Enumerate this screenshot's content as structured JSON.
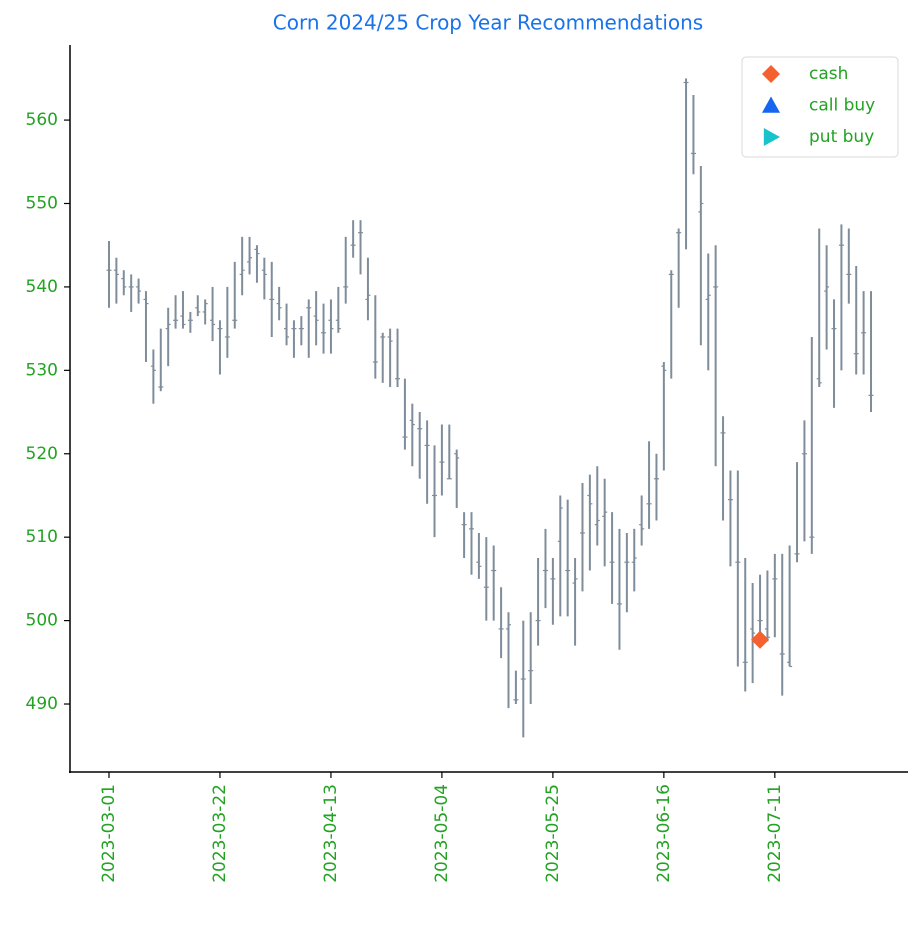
{
  "chart_data": {
    "type": "ohlc",
    "title": "Corn 2024/25 Crop Year Recommendations",
    "categories": [
      "2023-03-01",
      null,
      null,
      null,
      null,
      null,
      null,
      null,
      null,
      null,
      null,
      null,
      null,
      null,
      null,
      "2023-03-22",
      null,
      null,
      null,
      null,
      null,
      null,
      null,
      null,
      null,
      null,
      null,
      null,
      null,
      null,
      "2023-04-13",
      null,
      null,
      null,
      null,
      null,
      null,
      null,
      null,
      null,
      null,
      null,
      null,
      null,
      null,
      "2023-05-04",
      null,
      null,
      null,
      null,
      null,
      null,
      null,
      null,
      null,
      null,
      null,
      null,
      null,
      null,
      "2023-05-25",
      null,
      null,
      null,
      null,
      null,
      null,
      null,
      null,
      null,
      null,
      null,
      null,
      null,
      null,
      "2023-06-16",
      null,
      null,
      null,
      null,
      null,
      null,
      null,
      null,
      null,
      null,
      null,
      null,
      null,
      null,
      "2023-07-11",
      null,
      null,
      null,
      null,
      null,
      null,
      null,
      null,
      null,
      null,
      null,
      null,
      null
    ],
    "open": [
      542,
      542,
      541,
      540,
      540,
      538.5,
      530.5,
      528,
      535,
      536,
      536.5,
      536,
      537.5,
      537,
      536,
      535,
      534,
      536,
      541.5,
      543,
      544.5,
      542,
      538.5,
      538,
      535,
      535,
      535,
      537.5,
      536.5,
      534.5,
      536,
      536,
      540,
      545,
      546.5,
      538.5,
      531,
      534,
      534,
      529,
      522,
      524,
      523,
      521,
      515,
      519,
      517,
      520,
      511.5,
      511,
      507,
      504,
      506,
      499,
      499,
      490.5,
      493,
      494,
      500,
      506,
      505,
      509.5,
      506,
      504.5,
      510.5,
      515,
      511.5,
      512.5,
      507,
      502,
      507,
      507,
      511.5,
      514,
      517,
      530.5,
      541.5,
      546.5,
      564.5,
      556,
      549,
      538.5,
      540,
      522.5,
      514.5,
      507,
      495,
      499,
      500,
      499,
      505,
      496,
      495,
      508,
      520,
      510,
      529,
      539.5,
      535,
      545,
      541.5,
      532,
      534.5,
      527
    ],
    "high": [
      545.5,
      543.5,
      542,
      541.5,
      541,
      539.5,
      532.5,
      535,
      537.5,
      539,
      539.5,
      537,
      539,
      538.5,
      540,
      536,
      540,
      543,
      546,
      546,
      545,
      543.5,
      543,
      540,
      538,
      536,
      536.5,
      538.5,
      539.5,
      538,
      538.5,
      540,
      546,
      548,
      548,
      543.5,
      539,
      534.5,
      535,
      535,
      529,
      526,
      525,
      524,
      521,
      523.5,
      523.5,
      520.5,
      513,
      513,
      510.5,
      510,
      509,
      504,
      501,
      494,
      500,
      501,
      507.5,
      511,
      507.5,
      515,
      514.5,
      507.5,
      516.5,
      517.5,
      518.5,
      517,
      513,
      511,
      510.5,
      511,
      515,
      521.5,
      520,
      531,
      542,
      547,
      565,
      563,
      554.5,
      544,
      545,
      524.5,
      518,
      518,
      507.5,
      504.5,
      505.5,
      506,
      508,
      508,
      509,
      519,
      524,
      534,
      547,
      545,
      538.5,
      547.5,
      547,
      542.5,
      539.5,
      539.5
    ],
    "low": [
      537.5,
      538,
      539,
      537,
      538,
      531,
      526,
      527.5,
      530.5,
      535,
      535,
      534.5,
      536.5,
      535.5,
      533.5,
      529.5,
      531.5,
      535,
      539,
      541.5,
      540.5,
      538.5,
      534,
      536,
      533,
      531.5,
      533,
      531.5,
      533,
      532,
      532,
      534.5,
      538,
      543.5,
      541.5,
      536,
      529,
      528.5,
      528,
      528,
      520.5,
      518.5,
      517,
      514,
      510,
      515,
      517,
      513.5,
      507.5,
      505.5,
      505,
      500,
      500,
      495.5,
      489.5,
      490,
      486,
      490,
      497,
      501.5,
      499.5,
      500.5,
      500.5,
      497,
      503.5,
      506,
      509,
      506.5,
      502,
      496.5,
      501,
      503.5,
      509,
      511,
      512,
      518,
      529,
      537.5,
      544.5,
      553.5,
      533,
      530,
      518.5,
      512,
      506.5,
      494.5,
      491.5,
      492.5,
      498,
      497.5,
      498,
      491,
      494.5,
      507,
      509.5,
      508,
      528,
      532.5,
      525.5,
      530,
      538,
      529.5,
      529.5,
      525
    ],
    "close": [
      542,
      541.5,
      540,
      540,
      539.5,
      538,
      530,
      528,
      535.5,
      536,
      535.5,
      536,
      537,
      538,
      535.5,
      535,
      534,
      536,
      542,
      543.5,
      544,
      541.5,
      538.5,
      537.5,
      534,
      535,
      535,
      537.5,
      536,
      534.5,
      535,
      535,
      540,
      545,
      546.5,
      539,
      531,
      534,
      533.5,
      529,
      522,
      523.5,
      523,
      521,
      515,
      519,
      517,
      519.5,
      511.5,
      511,
      506.5,
      504,
      506,
      499,
      499.5,
      490.5,
      493,
      494,
      500,
      506,
      505,
      513.5,
      506,
      505,
      510.5,
      514,
      512,
      513,
      507,
      502,
      507,
      507.5,
      511,
      514,
      517,
      530,
      541.5,
      546.5,
      564.5,
      556,
      550,
      539,
      540,
      522.5,
      514.5,
      507,
      495,
      498.5,
      500,
      498,
      505,
      496,
      494.5,
      508,
      520,
      510,
      528.5,
      540,
      535,
      545,
      541.5,
      532,
      534.5,
      527
    ],
    "color": "#7f8d9a",
    "series": [
      {
        "name": "cash",
        "color": "#f4602e",
        "marker": "diamond",
        "x": [
          88
        ],
        "values": [
          497.7
        ]
      },
      {
        "name": "call buy",
        "color": "#1565ef",
        "marker": "triangle-up",
        "x": [],
        "values": []
      },
      {
        "name": "put buy",
        "color": "#19c3cc",
        "marker": "triangle-right",
        "x": [],
        "values": []
      }
    ],
    "xlim": [
      -5.27,
      108
    ],
    "ylim": [
      481.85,
      569
    ],
    "yticks": [
      490,
      500,
      510,
      520,
      530,
      540,
      550,
      560
    ],
    "legend": "upper right",
    "text_color": "#22a322",
    "title_color": "#1a73e8"
  }
}
